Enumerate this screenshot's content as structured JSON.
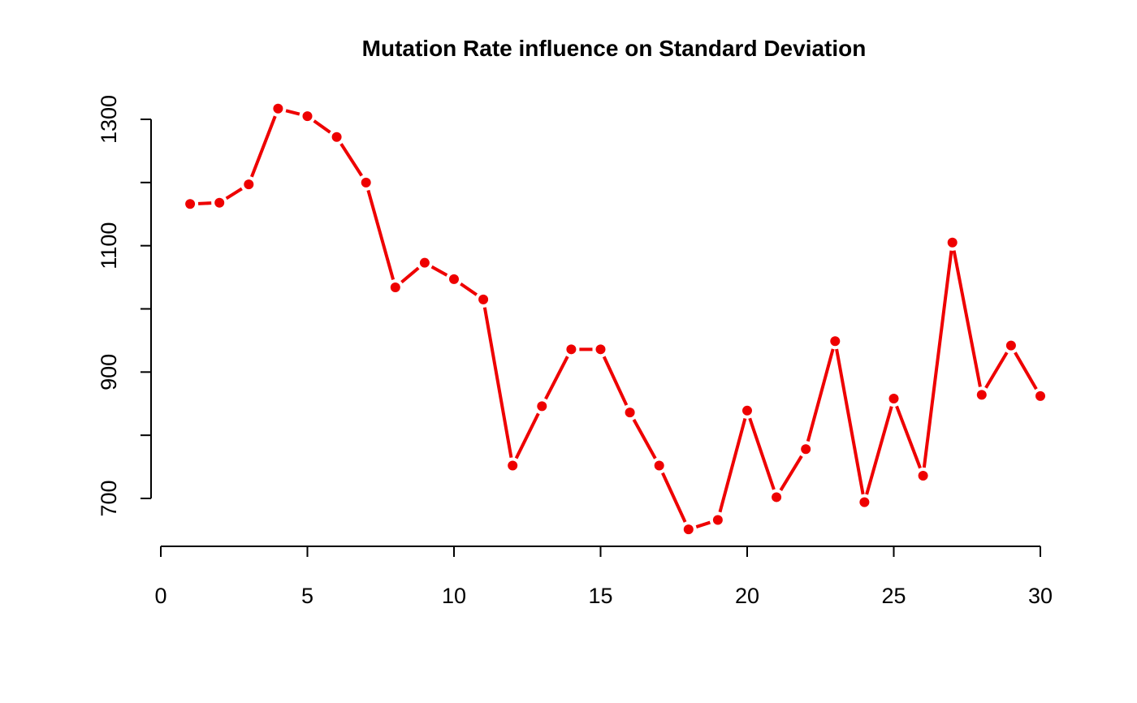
{
  "chart_data": {
    "type": "line",
    "title": "Mutation Rate influence on Standard Deviation",
    "xlabel": "",
    "ylabel": "",
    "x": [
      1,
      2,
      3,
      4,
      5,
      6,
      7,
      8,
      9,
      10,
      11,
      12,
      13,
      14,
      15,
      16,
      17,
      18,
      19,
      20,
      21,
      22,
      23,
      24,
      25,
      26,
      27,
      28,
      29,
      30
    ],
    "series": [
      {
        "values": [
          1166,
          1168,
          1197,
          1317,
          1305,
          1272,
          1200,
          1034,
          1073,
          1047,
          1015,
          752,
          846,
          936,
          936,
          836,
          752,
          651,
          666,
          839,
          702,
          778,
          949,
          694,
          858,
          736,
          1105,
          864,
          942,
          862
        ],
        "color": "#ee0000"
      }
    ],
    "xlim": [
      0,
      30
    ],
    "ylim": [
      650,
      1317
    ],
    "x_ticks": [
      0,
      5,
      10,
      15,
      20,
      25,
      30
    ],
    "y_ticks": [
      700,
      800,
      900,
      1000,
      1100,
      1200,
      1300
    ],
    "y_tick_labels": [
      "700",
      "",
      "900",
      "",
      "1100",
      "",
      "1300"
    ],
    "grid": false,
    "legend": "none"
  }
}
